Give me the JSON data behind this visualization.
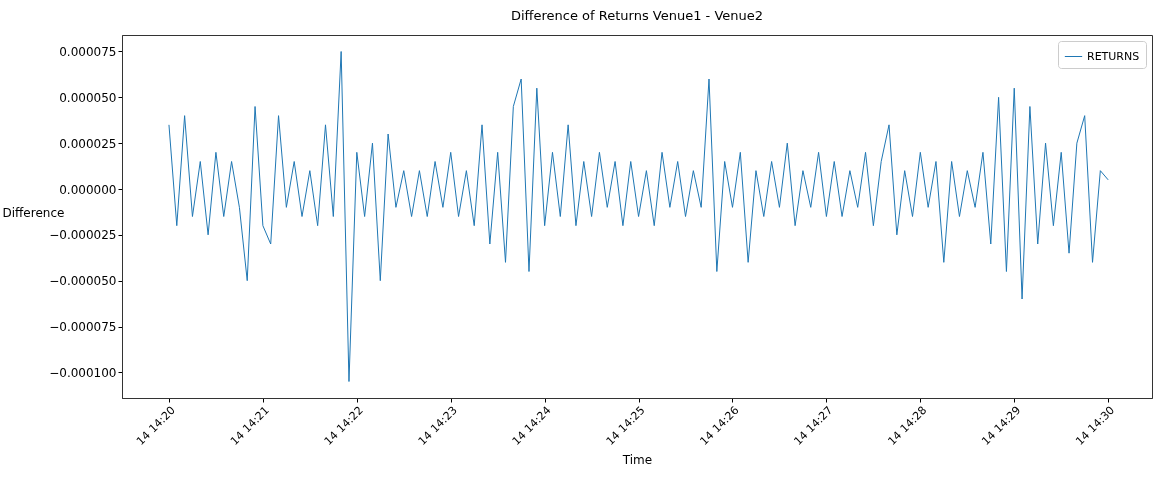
{
  "chart_data": {
    "type": "line",
    "title": "Difference of Returns Venue1 - Venue2",
    "xlabel": "Time",
    "ylabel": "Difference",
    "x": [
      "--01-14T14:20:00",
      "--01-14T14:20:05",
      "--01-14T14:20:10",
      "--01-14T14:20:15",
      "--01-14T14:20:20",
      "--01-14T14:20:25",
      "--01-14T14:20:30",
      "--01-14T14:20:35",
      "--01-14T14:20:40",
      "--01-14T14:20:45",
      "--01-14T14:20:50",
      "--01-14T14:20:55",
      "--01-14T14:21:00",
      "--01-14T14:21:05",
      "--01-14T14:21:10",
      "--01-14T14:21:15",
      "--01-14T14:21:20",
      "--01-14T14:21:25",
      "--01-14T14:21:30",
      "--01-14T14:21:35",
      "--01-14T14:21:40",
      "--01-14T14:21:45",
      "--01-14T14:21:50",
      "--01-14T14:21:55",
      "--01-14T14:22:00",
      "--01-14T14:22:05",
      "--01-14T14:22:10",
      "--01-14T14:22:15",
      "--01-14T14:22:20",
      "--01-14T14:22:25",
      "--01-14T14:22:30",
      "--01-14T14:22:35",
      "--01-14T14:22:40",
      "--01-14T14:22:45",
      "--01-14T14:22:50",
      "--01-14T14:22:55",
      "--01-14T14:23:00",
      "--01-14T14:23:05",
      "--01-14T14:23:10",
      "--01-14T14:23:15",
      "--01-14T14:23:20",
      "--01-14T14:23:25",
      "--01-14T14:23:30",
      "--01-14T14:23:35",
      "--01-14T14:23:40",
      "--01-14T14:23:45",
      "--01-14T14:23:50",
      "--01-14T14:23:55",
      "--01-14T14:24:00",
      "--01-14T14:24:05",
      "--01-14T14:24:10",
      "--01-14T14:24:15",
      "--01-14T14:24:20",
      "--01-14T14:24:25",
      "--01-14T14:24:30",
      "--01-14T14:24:35",
      "--01-14T14:24:40",
      "--01-14T14:24:45",
      "--01-14T14:24:50",
      "--01-14T14:24:55",
      "--01-14T14:25:00",
      "--01-14T14:25:05",
      "--01-14T14:25:10",
      "--01-14T14:25:15",
      "--01-14T14:25:20",
      "--01-14T14:25:25",
      "--01-14T14:25:30",
      "--01-14T14:25:35",
      "--01-14T14:25:40",
      "--01-14T14:25:45",
      "--01-14T14:25:50",
      "--01-14T14:25:55",
      "--01-14T14:26:00",
      "--01-14T14:26:05",
      "--01-14T14:26:10",
      "--01-14T14:26:15",
      "--01-14T14:26:20",
      "--01-14T14:26:25",
      "--01-14T14:26:30",
      "--01-14T14:26:35",
      "--01-14T14:26:40",
      "--01-14T14:26:45",
      "--01-14T14:26:50",
      "--01-14T14:26:55",
      "--01-14T14:27:00",
      "--01-14T14:27:05",
      "--01-14T14:27:10",
      "--01-14T14:27:15",
      "--01-14T14:27:20",
      "--01-14T14:27:25",
      "--01-14T14:27:30",
      "--01-14T14:27:35",
      "--01-14T14:27:40",
      "--01-14T14:27:45",
      "--01-14T14:27:50",
      "--01-14T14:27:55",
      "--01-14T14:28:00",
      "--01-14T14:28:05",
      "--01-14T14:28:10",
      "--01-14T14:28:15",
      "--01-14T14:28:20",
      "--01-14T14:28:25",
      "--01-14T14:28:30",
      "--01-14T14:28:35",
      "--01-14T14:28:40",
      "--01-14T14:28:45",
      "--01-14T14:28:50",
      "--01-14T14:28:55",
      "--01-14T14:29:00",
      "--01-14T14:29:05",
      "--01-14T14:29:10",
      "--01-14T14:29:15",
      "--01-14T14:29:20",
      "--01-14T14:29:25",
      "--01-14T14:29:30",
      "--01-14T14:29:35",
      "--01-14T14:29:40",
      "--01-14T14:29:45",
      "--01-14T14:29:50",
      "--01-14T14:29:55",
      "--01-14T14:30:00"
    ],
    "series": [
      {
        "name": "RETURNS",
        "color": "#1f77b4",
        "values": [
          3.5e-05,
          -2e-05,
          4e-05,
          -1.5e-05,
          1.5e-05,
          -2.5e-05,
          2e-05,
          -1.5e-05,
          1.5e-05,
          -1e-05,
          -5e-05,
          4.5e-05,
          -2e-05,
          -3e-05,
          4e-05,
          -1e-05,
          1.5e-05,
          -1.5e-05,
          1e-05,
          -2e-05,
          3.5e-05,
          -1.5e-05,
          7.5e-05,
          -0.000105,
          2e-05,
          -1.5e-05,
          2.5e-05,
          -5e-05,
          3e-05,
          -1e-05,
          1e-05,
          -1.5e-05,
          1e-05,
          -1.5e-05,
          1.5e-05,
          -1e-05,
          2e-05,
          -1.5e-05,
          1e-05,
          -2e-05,
          3.5e-05,
          -3e-05,
          2e-05,
          -4e-05,
          4.5e-05,
          6e-05,
          -4.5e-05,
          5.5e-05,
          -2e-05,
          2e-05,
          -1.5e-05,
          3.5e-05,
          -2e-05,
          1.5e-05,
          -1.5e-05,
          2e-05,
          -1e-05,
          1.5e-05,
          -2e-05,
          1.5e-05,
          -1.5e-05,
          1e-05,
          -2e-05,
          2e-05,
          -1e-05,
          1.5e-05,
          -1.5e-05,
          1e-05,
          -1e-05,
          6e-05,
          -4.5e-05,
          1.5e-05,
          -1e-05,
          2e-05,
          -4e-05,
          1e-05,
          -1.5e-05,
          1.5e-05,
          -1e-05,
          2.5e-05,
          -2e-05,
          1e-05,
          -1e-05,
          2e-05,
          -1.5e-05,
          1.5e-05,
          -1.5e-05,
          1e-05,
          -1e-05,
          2e-05,
          -2e-05,
          1.5e-05,
          3.5e-05,
          -2.5e-05,
          1e-05,
          -1.5e-05,
          2e-05,
          -1e-05,
          1.5e-05,
          -4e-05,
          1.5e-05,
          -1.5e-05,
          1e-05,
          -1e-05,
          2e-05,
          -3e-05,
          5e-05,
          -4.5e-05,
          5.5e-05,
          -6e-05,
          4.5e-05,
          -3e-05,
          2.5e-05,
          -2e-05,
          2e-05,
          -3.5e-05,
          2.5e-05,
          4e-05,
          -4e-05,
          1e-05,
          5e-06
        ]
      }
    ],
    "xlim": [
      "--01-14T14:19:30",
      "--01-14T14:30:28"
    ],
    "ylim": [
      -0.000114,
      8.4e-05
    ],
    "xticks": [
      {
        "value": "--01-14T14:20",
        "label": "14 14:20"
      },
      {
        "value": "--01-14T14:21",
        "label": "14 14:21"
      },
      {
        "value": "--01-14T14:22",
        "label": "14 14:22"
      },
      {
        "value": "--01-14T14:23",
        "label": "14 14:23"
      },
      {
        "value": "--01-14T14:24",
        "label": "14 14:24"
      },
      {
        "value": "--01-14T14:25",
        "label": "14 14:25"
      },
      {
        "value": "--01-14T14:26",
        "label": "14 14:26"
      },
      {
        "value": "--01-14T14:27",
        "label": "14 14:27"
      },
      {
        "value": "--01-14T14:28",
        "label": "14 14:28"
      },
      {
        "value": "--01-14T14:29",
        "label": "14 14:29"
      },
      {
        "value": "--01-14T14:30",
        "label": "14 14:30"
      }
    ],
    "yticks": [
      {
        "value": -0.0001,
        "label": "−0.000100"
      },
      {
        "value": -7.5e-05,
        "label": "−0.000075"
      },
      {
        "value": -5e-05,
        "label": "−0.000050"
      },
      {
        "value": -2.5e-05,
        "label": "−0.000025"
      },
      {
        "value": 0,
        "label": "0.000000"
      },
      {
        "value": 2.5e-05,
        "label": "0.000025"
      },
      {
        "value": 5e-05,
        "label": "0.000050"
      },
      {
        "value": 7.5e-05,
        "label": "0.000075"
      }
    ],
    "grid": false,
    "legend": "top right",
    "marker": "none",
    "line_style": "solid"
  }
}
